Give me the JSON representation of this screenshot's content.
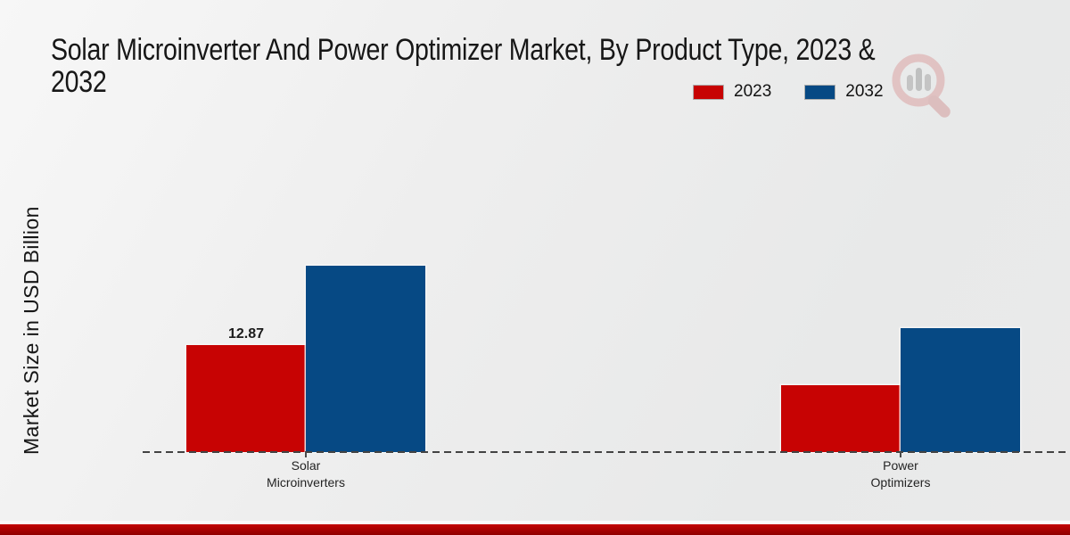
{
  "header": {
    "title_lines": [
      "Solar Microinverter And Power Optimizer Market, By Product Type, 2023 &",
      "2032"
    ],
    "title_full": "Solar Microinverter And Power Optimizer Market, By Product Type, 2023 & 2032"
  },
  "axis": {
    "y_label": "Market Size in USD Billion"
  },
  "icons": {
    "watermark": "magnifier-bar-chart-logo"
  },
  "colors": {
    "series_2023": "#c70303",
    "series_2032": "#064984",
    "footer_bar": "#c40404",
    "baseline": "#434343"
  },
  "chart_data": {
    "type": "bar",
    "title": "Solar Microinverter And Power Optimizer Market, By Product Type, 2023 & 2032",
    "xlabel": "",
    "ylabel": "Market Size in USD Billion",
    "units": "USD Billion",
    "grid": false,
    "legend_position": "top-right",
    "ylim": [
      0,
      25
    ],
    "categories": [
      {
        "label": "Solar Microinverters",
        "lines": [
          "Solar",
          "Microinverters"
        ]
      },
      {
        "label": "Power Optimizers",
        "lines": [
          "Power",
          "Optimizers"
        ]
      }
    ],
    "series": [
      {
        "name": "2023",
        "color": "#c70303",
        "values": [
          12.87,
          8.1
        ],
        "value_labels": [
          "12.87",
          null
        ]
      },
      {
        "name": "2032",
        "color": "#064984",
        "values": [
          22.4,
          14.9
        ],
        "value_labels": [
          null,
          null
        ]
      }
    ]
  }
}
